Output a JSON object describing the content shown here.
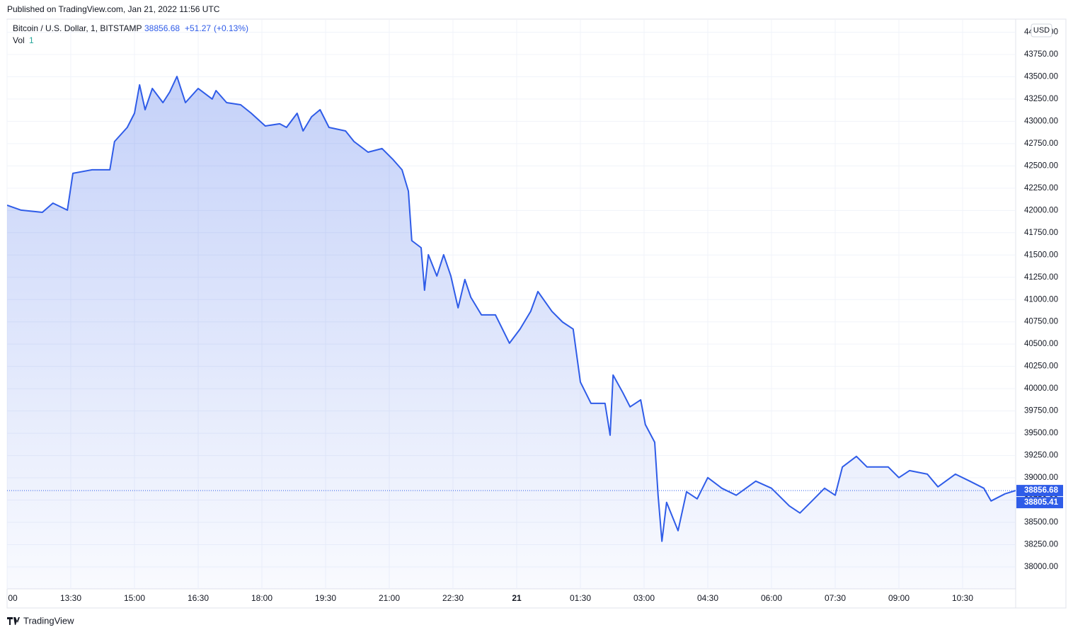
{
  "published": "Published on TradingView.com, Jan 21, 2022 11:56 UTC",
  "footer": "TradingView",
  "chart_data": {
    "type": "line",
    "symbol": "Bitcoin / U.S. Dollar, 1, BITSTAMP",
    "last": "38856.68",
    "change": "+51.27",
    "change_pct": "(+0.13%)",
    "vol_label": "Vol",
    "vol_value": "1",
    "currency": "USD",
    "xlim": [
      12,
      35.75
    ],
    "xticks": [
      {
        "value": 12,
        "label": "00"
      },
      {
        "value": 13.5,
        "label": "13:30"
      },
      {
        "value": 15,
        "label": "15:00"
      },
      {
        "value": 16.5,
        "label": "16:30"
      },
      {
        "value": 18,
        "label": "18:00"
      },
      {
        "value": 19.5,
        "label": "19:30"
      },
      {
        "value": 21,
        "label": "21:00"
      },
      {
        "value": 22.5,
        "label": "22:30"
      },
      {
        "value": 24,
        "label": "21"
      },
      {
        "value": 25.5,
        "label": "01:30"
      },
      {
        "value": 27,
        "label": "03:00"
      },
      {
        "value": 28.5,
        "label": "04:30"
      },
      {
        "value": 30,
        "label": "06:00"
      },
      {
        "value": 31.5,
        "label": "07:30"
      },
      {
        "value": 33,
        "label": "09:00"
      },
      {
        "value": 34.5,
        "label": "10:30"
      }
    ],
    "ylim": [
      37547,
      44139
    ],
    "yticks": [
      {
        "value": 38000,
        "label": "38000.00"
      },
      {
        "value": 38250,
        "label": "38250.00"
      },
      {
        "value": 38500,
        "label": "38500.00"
      },
      {
        "value": 38750,
        "label": "38750.00"
      },
      {
        "value": 39000,
        "label": "39000.00"
      },
      {
        "value": 39250,
        "label": "39250.00"
      },
      {
        "value": 39500,
        "label": "39500.00"
      },
      {
        "value": 39750,
        "label": "39750.00"
      },
      {
        "value": 40000,
        "label": "40000.00"
      },
      {
        "value": 40250,
        "label": "40250.00"
      },
      {
        "value": 40500,
        "label": "40500.00"
      },
      {
        "value": 40750,
        "label": "40750.00"
      },
      {
        "value": 41000,
        "label": "41000.00"
      },
      {
        "value": 41250,
        "label": "41250.00"
      },
      {
        "value": 41500,
        "label": "41500.00"
      },
      {
        "value": 41750,
        "label": "41750.00"
      },
      {
        "value": 42000,
        "label": "42000.00"
      },
      {
        "value": 42250,
        "label": "42250.00"
      },
      {
        "value": 42500,
        "label": "42500.00"
      },
      {
        "value": 42750,
        "label": "42750.00"
      },
      {
        "value": 43000,
        "label": "43000.00"
      },
      {
        "value": 43250,
        "label": "43250.00"
      },
      {
        "value": 43500,
        "label": "43500.00"
      },
      {
        "value": 43750,
        "label": "43750.00"
      },
      {
        "value": 44000,
        "label": "44000.00"
      }
    ],
    "grid": true,
    "price_labels": [
      38856.68,
      38805.41
    ],
    "x": [
      12.0,
      12.33,
      12.83,
      13.08,
      13.42,
      13.55,
      14.0,
      14.42,
      14.53,
      14.83,
      15.0,
      15.12,
      15.25,
      15.42,
      15.67,
      15.83,
      16.0,
      16.2,
      16.5,
      16.83,
      16.92,
      17.17,
      17.5,
      17.75,
      18.08,
      18.42,
      18.58,
      18.83,
      18.97,
      19.17,
      19.37,
      19.58,
      19.97,
      20.17,
      20.5,
      20.83,
      21.08,
      21.3,
      21.45,
      21.53,
      21.75,
      21.83,
      21.92,
      22.12,
      22.28,
      22.45,
      22.62,
      22.78,
      22.92,
      23.17,
      23.5,
      23.83,
      24.08,
      24.33,
      24.5,
      24.83,
      25.08,
      25.33,
      25.5,
      25.75,
      26.08,
      26.2,
      26.27,
      26.5,
      26.67,
      26.92,
      27.03,
      27.25,
      27.33,
      27.42,
      27.53,
      27.8,
      28.0,
      28.25,
      28.5,
      28.83,
      29.17,
      29.63,
      30.0,
      30.42,
      30.67,
      30.92,
      31.25,
      31.5,
      31.67,
      32.0,
      32.25,
      32.75,
      33.0,
      33.25,
      33.67,
      33.92,
      34.33,
      34.67,
      35.0,
      35.17,
      35.5,
      35.75
    ],
    "series": [
      {
        "name": "BTCUSD",
        "color": "#2f5ce8",
        "values": [
          42058,
          42003,
          41979,
          42082,
          42003,
          42416,
          42456,
          42456,
          42773,
          42932,
          43091,
          43409,
          43130,
          43369,
          43210,
          43329,
          43504,
          43210,
          43369,
          43250,
          43345,
          43210,
          43186,
          43091,
          42948,
          42972,
          42932,
          43091,
          42892,
          43051,
          43130,
          42932,
          42892,
          42773,
          42654,
          42694,
          42575,
          42456,
          42217,
          41661,
          41582,
          41105,
          41503,
          41264,
          41503,
          41264,
          40907,
          41225,
          41026,
          40828,
          40828,
          40510,
          40669,
          40868,
          41090,
          40868,
          40748,
          40669,
          40074,
          39835,
          39835,
          39478,
          40153,
          39955,
          39796,
          39875,
          39597,
          39398,
          38803,
          38287,
          38724,
          38406,
          38843,
          38764,
          39002,
          38883,
          38804,
          38962,
          38883,
          38684,
          38605,
          38724,
          38883,
          38804,
          39121,
          39240,
          39121,
          39121,
          39002,
          39081,
          39041,
          38899,
          39041,
          38962,
          38883,
          38740,
          38820,
          38856.68
        ]
      }
    ]
  }
}
